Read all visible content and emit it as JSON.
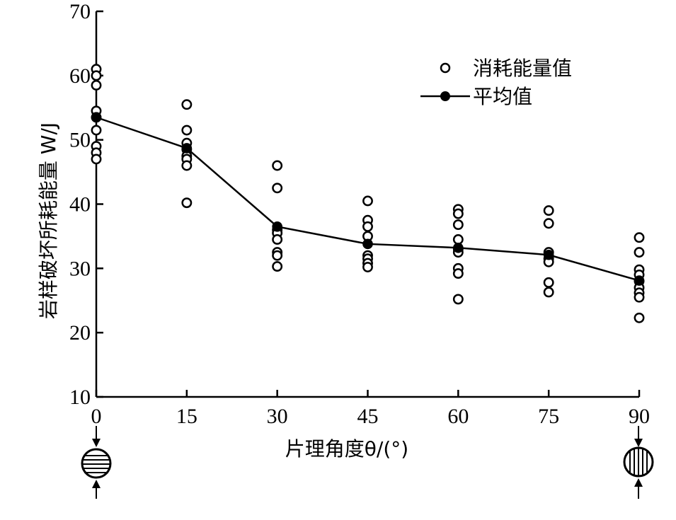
{
  "chart_data": {
    "type": "scatter",
    "xlabel": "片理角度θ/(°)",
    "ylabel": "岩样破坏所耗能量 W/J",
    "xlim": [
      0,
      90
    ],
    "ylim": [
      10,
      70
    ],
    "x_ticks": [
      "0",
      "15",
      "30",
      "45",
      "60",
      "75",
      "90"
    ],
    "y_ticks": [
      "10",
      "20",
      "30",
      "40",
      "50",
      "60",
      "70"
    ],
    "legend_position": "top-right",
    "series": [
      {
        "name": "消耗能量值",
        "marker": "open-circle",
        "points": [
          [
            0,
            61.0
          ],
          [
            0,
            60.0
          ],
          [
            0,
            58.5
          ],
          [
            0,
            54.5
          ],
          [
            0,
            53.5
          ],
          [
            0,
            51.5
          ],
          [
            0,
            49.0
          ],
          [
            0,
            48.0
          ],
          [
            0,
            47.0
          ],
          [
            15,
            55.5
          ],
          [
            15,
            51.5
          ],
          [
            15,
            49.5
          ],
          [
            15,
            48.5
          ],
          [
            15,
            47.5
          ],
          [
            15,
            47.0
          ],
          [
            15,
            46.0
          ],
          [
            15,
            40.2
          ],
          [
            30,
            46.0
          ],
          [
            30,
            42.5
          ],
          [
            30,
            36.0
          ],
          [
            30,
            35.5
          ],
          [
            30,
            34.5
          ],
          [
            30,
            32.5
          ],
          [
            30,
            32.0
          ],
          [
            30,
            30.3
          ],
          [
            45,
            40.5
          ],
          [
            45,
            37.5
          ],
          [
            45,
            36.5
          ],
          [
            45,
            35.0
          ],
          [
            45,
            32.0
          ],
          [
            45,
            31.5
          ],
          [
            45,
            30.8
          ],
          [
            45,
            30.2
          ],
          [
            60,
            39.2
          ],
          [
            60,
            38.5
          ],
          [
            60,
            36.8
          ],
          [
            60,
            34.5
          ],
          [
            60,
            33.0
          ],
          [
            60,
            32.5
          ],
          [
            60,
            30.0
          ],
          [
            60,
            29.2
          ],
          [
            60,
            25.2
          ],
          [
            75,
            39.0
          ],
          [
            75,
            37.0
          ],
          [
            75,
            32.5
          ],
          [
            75,
            31.5
          ],
          [
            75,
            31.0
          ],
          [
            75,
            27.8
          ],
          [
            75,
            26.3
          ],
          [
            90,
            34.8
          ],
          [
            90,
            32.5
          ],
          [
            90,
            29.8
          ],
          [
            90,
            29.0
          ],
          [
            90,
            28.0
          ],
          [
            90,
            27.0
          ],
          [
            90,
            26.2
          ],
          [
            90,
            25.5
          ],
          [
            90,
            22.3
          ]
        ]
      },
      {
        "name": "平均值",
        "marker": "filled-circle-line",
        "x": [
          0,
          15,
          30,
          45,
          60,
          75,
          90
        ],
        "y": [
          53.5,
          48.7,
          36.5,
          33.8,
          33.2,
          32.1,
          28.1
        ]
      }
    ]
  }
}
